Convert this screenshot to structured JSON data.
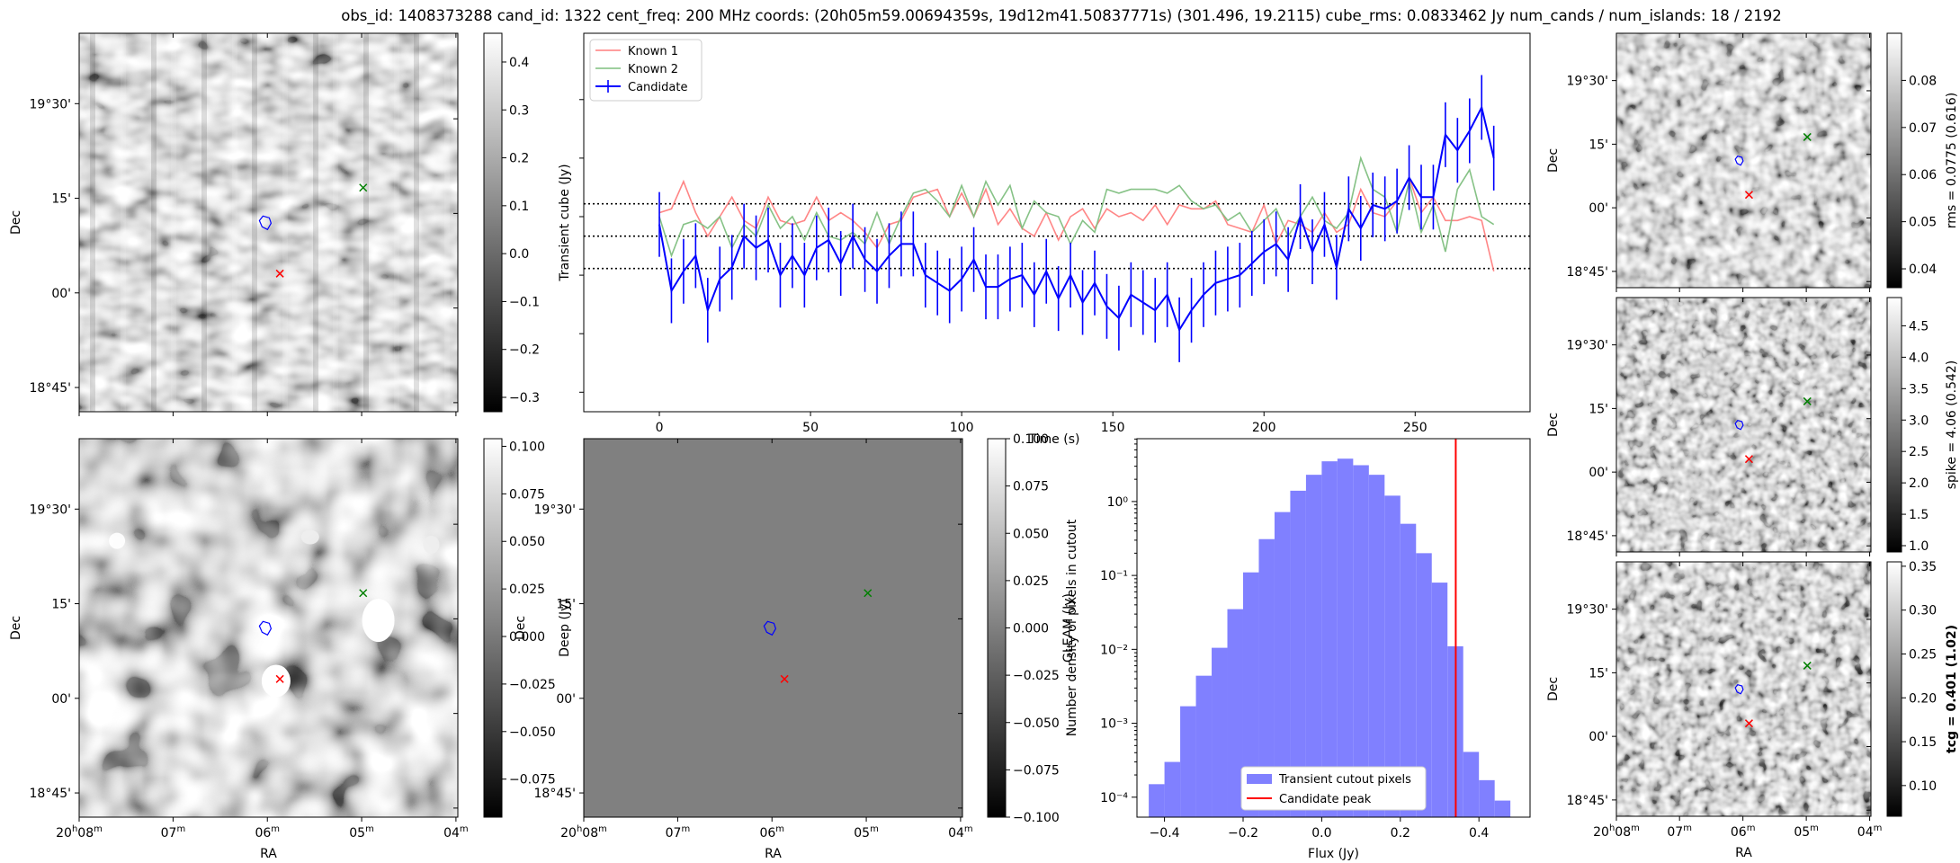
{
  "title": "obs_id: 1408373288 cand_id: 1322 cent_freq: 200 MHz coords: (20h05m59.00694359s, 19d12m41.50837771s) (301.496, 19.2115) cube_rms: 0.0833462 Jy num_cands / num_islands: 18 / 2192",
  "sky_axes": {
    "dec_ticks": [
      "19°30'",
      "15'",
      "00'",
      "18°45'"
    ],
    "ra_ticks": [
      {
        "hm": "20",
        "h": "h",
        "m": "08",
        "mm": "m"
      },
      {
        "hm": "",
        "h": "",
        "m": "07",
        "mm": "m"
      },
      {
        "hm": "",
        "h": "",
        "m": "06",
        "mm": "m"
      },
      {
        "hm": "",
        "h": "",
        "m": "05",
        "mm": "m"
      },
      {
        "hm": "",
        "h": "",
        "m": "04",
        "mm": "m"
      }
    ],
    "xlabel": "RA",
    "ylabel": "Dec"
  },
  "panels": [
    {
      "id": "transient-cube",
      "colorbar_label": "Transient cube (Jy)",
      "colorbar_ticks": [
        "0.4",
        "0.3",
        "0.2",
        "0.1",
        "0.0",
        "−0.1",
        "−0.2",
        "−0.3"
      ],
      "colorbar_range": [
        -0.33,
        0.46
      ]
    },
    {
      "id": "deep",
      "colorbar_label": "Deep (Jy)",
      "colorbar_ticks": [
        "0.100",
        "0.075",
        "0.050",
        "0.025",
        "0.000",
        "−0.025",
        "−0.050",
        "−0.075"
      ],
      "colorbar_range": [
        -0.095,
        0.104
      ]
    },
    {
      "id": "gleam",
      "colorbar_label": "GLEAM (Jy)",
      "colorbar_ticks": [
        "0.100",
        "0.075",
        "0.050",
        "0.025",
        "0.000",
        "−0.025",
        "−0.050",
        "−0.075",
        "−0.100"
      ],
      "colorbar_range": [
        -0.1,
        0.1
      ]
    },
    {
      "id": "rms",
      "colorbar_label": "rms = 0.0775 (0.616)",
      "colorbar_ticks": [
        "0.08",
        "0.07",
        "0.06",
        "0.05",
        "0.04"
      ],
      "colorbar_range": [
        0.036,
        0.09
      ]
    },
    {
      "id": "spike",
      "colorbar_label": "spike = 4.06 (0.542)",
      "colorbar_ticks": [
        "4.5",
        "4.0",
        "3.5",
        "3.0",
        "2.5",
        "2.0",
        "1.5",
        "1.0"
      ],
      "colorbar_range": [
        0.9,
        4.95
      ]
    },
    {
      "id": "tcg",
      "colorbar_label": "tcg = 0.401 (1.02)",
      "colorbar_ticks": [
        "0.35",
        "0.30",
        "0.25",
        "0.20",
        "0.15",
        "0.10"
      ],
      "colorbar_range": [
        0.065,
        0.355
      ]
    }
  ],
  "colors": {
    "known1": "#ff7f7f",
    "known2": "#7fbf7f",
    "candidate": "#0000ff",
    "hist": "#8080ff",
    "peak": "#ff0000"
  },
  "chart_data": [
    {
      "type": "line",
      "xlabel": "Time (s)",
      "ylabel": "",
      "xlim": [
        -25,
        288
      ],
      "ylim": [
        -0.45,
        0.52
      ],
      "xticks": [
        0,
        50,
        100,
        150,
        200,
        250
      ],
      "legend": "top-left",
      "hlines": [
        0.083,
        0.0,
        -0.083
      ],
      "x": [
        0,
        4,
        8,
        12,
        16,
        20,
        24,
        28,
        32,
        36,
        40,
        44,
        48,
        52,
        56,
        60,
        64,
        68,
        72,
        76,
        80,
        84,
        88,
        92,
        96,
        100,
        104,
        108,
        112,
        116,
        120,
        124,
        128,
        132,
        136,
        140,
        144,
        148,
        152,
        156,
        160,
        164,
        168,
        172,
        176,
        180,
        184,
        188,
        192,
        196,
        200,
        204,
        208,
        212,
        216,
        220,
        224,
        228,
        232,
        236,
        240,
        244,
        248,
        252,
        256,
        260,
        264,
        268,
        272,
        276
      ],
      "series": [
        {
          "name": "Known 1",
          "values": [
            0.06,
            0.07,
            0.14,
            0.06,
            0.0,
            0.05,
            0.1,
            0.04,
            0.02,
            0.1,
            0.04,
            0.03,
            0.04,
            0.1,
            0.04,
            0.06,
            0.04,
            0.01,
            -0.03,
            0.03,
            0.04,
            0.1,
            0.11,
            0.12,
            0.05,
            0.11,
            0.05,
            0.12,
            0.03,
            0.07,
            0.02,
            0.0,
            0.06,
            -0.01,
            0.05,
            0.07,
            0.02,
            0.07,
            0.05,
            0.06,
            0.04,
            0.08,
            0.03,
            0.08,
            0.07,
            0.07,
            0.09,
            0.03,
            0.02,
            0.01,
            0.08,
            -0.02,
            0.04,
            0.03,
            0.01,
            0.06,
            0.01,
            0.03,
            0.12,
            0.06,
            0.05,
            0.09,
            0.15,
            0.06,
            0.1,
            0.04,
            0.04,
            0.05,
            0.04,
            -0.09
          ]
        },
        {
          "name": "Known 2",
          "values": [
            0.05,
            -0.05,
            0.03,
            0.04,
            0.02,
            0.05,
            -0.03,
            0.03,
            0.0,
            0.08,
            0.02,
            0.05,
            -0.01,
            0.06,
            0.0,
            -0.01,
            0.01,
            -0.02,
            0.06,
            -0.02,
            0.05,
            0.11,
            0.12,
            0.09,
            0.05,
            0.13,
            0.05,
            0.14,
            0.08,
            0.13,
            0.02,
            0.09,
            0.06,
            0.05,
            -0.02,
            0.04,
            0.01,
            0.12,
            0.11,
            0.12,
            0.12,
            0.12,
            0.11,
            0.13,
            0.09,
            0.07,
            0.08,
            0.04,
            0.06,
            0.01,
            0.04,
            0.07,
            0.0,
            0.05,
            0.1,
            0.04,
            0.02,
            0.06,
            0.2,
            0.12,
            0.1,
            0.01,
            0.14,
            0.01,
            0.08,
            -0.04,
            0.12,
            0.17,
            0.05,
            0.03
          ]
        },
        {
          "name": "Candidate",
          "values": [
            0.03,
            -0.14,
            -0.09,
            -0.05,
            -0.19,
            -0.11,
            -0.08,
            0.0,
            -0.03,
            -0.01,
            -0.1,
            -0.05,
            -0.1,
            -0.03,
            -0.01,
            -0.07,
            0.0,
            -0.06,
            -0.09,
            -0.05,
            -0.02,
            -0.02,
            -0.1,
            -0.12,
            -0.14,
            -0.11,
            -0.06,
            -0.13,
            -0.13,
            -0.11,
            -0.1,
            -0.15,
            -0.09,
            -0.16,
            -0.1,
            -0.17,
            -0.12,
            -0.18,
            -0.21,
            -0.15,
            -0.17,
            -0.19,
            -0.15,
            -0.24,
            -0.19,
            -0.15,
            -0.12,
            -0.11,
            -0.1,
            -0.07,
            -0.04,
            -0.02,
            -0.06,
            0.05,
            -0.04,
            0.03,
            -0.08,
            0.07,
            0.02,
            0.08,
            0.07,
            0.09,
            0.15,
            0.1,
            0.1,
            0.26,
            0.22,
            0.27,
            0.33,
            0.2
          ],
          "errors": [
            0.083,
            0.083,
            0.083,
            0.083,
            0.083,
            0.083,
            0.083,
            0.083,
            0.083,
            0.083,
            0.083,
            0.083,
            0.083,
            0.083,
            0.083,
            0.083,
            0.083,
            0.083,
            0.083,
            0.083,
            0.083,
            0.083,
            0.083,
            0.083,
            0.083,
            0.083,
            0.083,
            0.083,
            0.083,
            0.083,
            0.083,
            0.083,
            0.083,
            0.083,
            0.083,
            0.083,
            0.083,
            0.083,
            0.083,
            0.083,
            0.083,
            0.083,
            0.083,
            0.083,
            0.083,
            0.083,
            0.083,
            0.083,
            0.083,
            0.083,
            0.083,
            0.083,
            0.083,
            0.083,
            0.083,
            0.083,
            0.083,
            0.083,
            0.083,
            0.083,
            0.083,
            0.083,
            0.083,
            0.083,
            0.083,
            0.083,
            0.083,
            0.083,
            0.083,
            0.083
          ]
        }
      ]
    },
    {
      "type": "bar",
      "xlabel": "Flux (Jy)",
      "ylabel": "Number density of pixels in cutout",
      "log_y": true,
      "xlim": [
        -0.47,
        0.53
      ],
      "ylim_log10": [
        -4.27,
        0.85
      ],
      "xticks": [
        -0.4,
        -0.2,
        0.0,
        0.2,
        0.4
      ],
      "xtick_labels": [
        "−0.4",
        "−0.2",
        "0.0",
        "0.2",
        "0.4"
      ],
      "yticks_log10": [
        -4,
        -3,
        -2,
        -1,
        0
      ],
      "ytick_labels": [
        "10⁻⁴",
        "10⁻³",
        "10⁻²",
        "10⁻¹",
        "10⁰"
      ],
      "legend": "lower-center",
      "bin_edges": [
        -0.44,
        -0.4,
        -0.36,
        -0.32,
        -0.28,
        -0.24,
        -0.2,
        -0.16,
        -0.12,
        -0.08,
        -0.04,
        0.0,
        0.04,
        0.08,
        0.12,
        0.16,
        0.2,
        0.24,
        0.28,
        0.32,
        0.36,
        0.4,
        0.44,
        0.48
      ],
      "values": [
        0.00015,
        0.0003,
        0.0017,
        0.0044,
        0.0105,
        0.035,
        0.11,
        0.31,
        0.72,
        1.4,
        2.3,
        3.5,
        3.8,
        3.1,
        2.3,
        1.2,
        0.5,
        0.2,
        0.08,
        0.011,
        0.00041,
        0.00017,
        9e-05
      ],
      "series_name": "Transient cutout pixels",
      "candidate_peak": 0.341,
      "candidate_peak_name": "Candidate peak"
    }
  ]
}
